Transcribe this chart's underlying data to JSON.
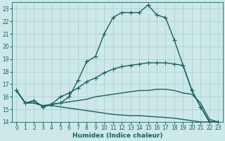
{
  "xlabel": "Humidex (Indice chaleur)",
  "bg_color": "#cce8e8",
  "grid_color": "#aacccc",
  "line_color": "#1a6060",
  "xlim": [
    -0.5,
    23.5
  ],
  "ylim": [
    14,
    23.5
  ],
  "xticks": [
    0,
    1,
    2,
    3,
    4,
    5,
    6,
    7,
    8,
    9,
    10,
    11,
    12,
    13,
    14,
    15,
    16,
    17,
    18,
    19,
    20,
    21,
    22,
    23
  ],
  "yticks": [
    14,
    15,
    16,
    17,
    18,
    19,
    20,
    21,
    22,
    23
  ],
  "line1_x": [
    0,
    1,
    2,
    3,
    4,
    5,
    6,
    7,
    8,
    9,
    10,
    11,
    12,
    13,
    14,
    15,
    16,
    17,
    18,
    19,
    20,
    21,
    22,
    23
  ],
  "line1_y": [
    16.5,
    15.5,
    15.7,
    15.2,
    15.4,
    15.5,
    16.0,
    17.3,
    18.8,
    19.2,
    21.0,
    22.3,
    22.7,
    22.7,
    22.7,
    23.3,
    22.5,
    22.3,
    20.5,
    18.5,
    16.5,
    15.2,
    14.0,
    14.0
  ],
  "line2_x": [
    0,
    1,
    2,
    3,
    4,
    5,
    6,
    7,
    8,
    9,
    10,
    11,
    12,
    13,
    14,
    15,
    16,
    17,
    18,
    19,
    20,
    21,
    22,
    23
  ],
  "line2_y": [
    16.5,
    15.5,
    15.7,
    15.2,
    15.4,
    16.0,
    16.3,
    16.7,
    17.2,
    17.5,
    17.9,
    18.2,
    18.4,
    18.5,
    18.6,
    18.7,
    18.7,
    18.7,
    18.6,
    18.5,
    16.5,
    15.2,
    14.0,
    14.0
  ],
  "line3_x": [
    0,
    1,
    2,
    3,
    4,
    5,
    6,
    7,
    8,
    9,
    10,
    11,
    12,
    13,
    14,
    15,
    16,
    17,
    18,
    19,
    20,
    21,
    22,
    23
  ],
  "line3_y": [
    16.5,
    15.5,
    15.5,
    15.3,
    15.4,
    15.5,
    15.6,
    15.7,
    15.8,
    16.0,
    16.1,
    16.2,
    16.3,
    16.4,
    16.5,
    16.5,
    16.6,
    16.6,
    16.5,
    16.3,
    16.2,
    15.5,
    14.2,
    14.0
  ],
  "line4_x": [
    0,
    1,
    2,
    3,
    4,
    5,
    6,
    7,
    8,
    9,
    10,
    11,
    12,
    13,
    14,
    15,
    16,
    17,
    18,
    19,
    20,
    21,
    22,
    23
  ],
  "line4_y": [
    16.5,
    15.5,
    15.5,
    15.3,
    15.3,
    15.2,
    15.1,
    15.0,
    14.9,
    14.8,
    14.7,
    14.6,
    14.55,
    14.5,
    14.5,
    14.45,
    14.4,
    14.35,
    14.3,
    14.2,
    14.1,
    14.0,
    14.0,
    14.0
  ],
  "marker_size": 2.5,
  "linewidth": 1.0,
  "tick_fontsize": 5.5,
  "xlabel_fontsize": 6.5
}
